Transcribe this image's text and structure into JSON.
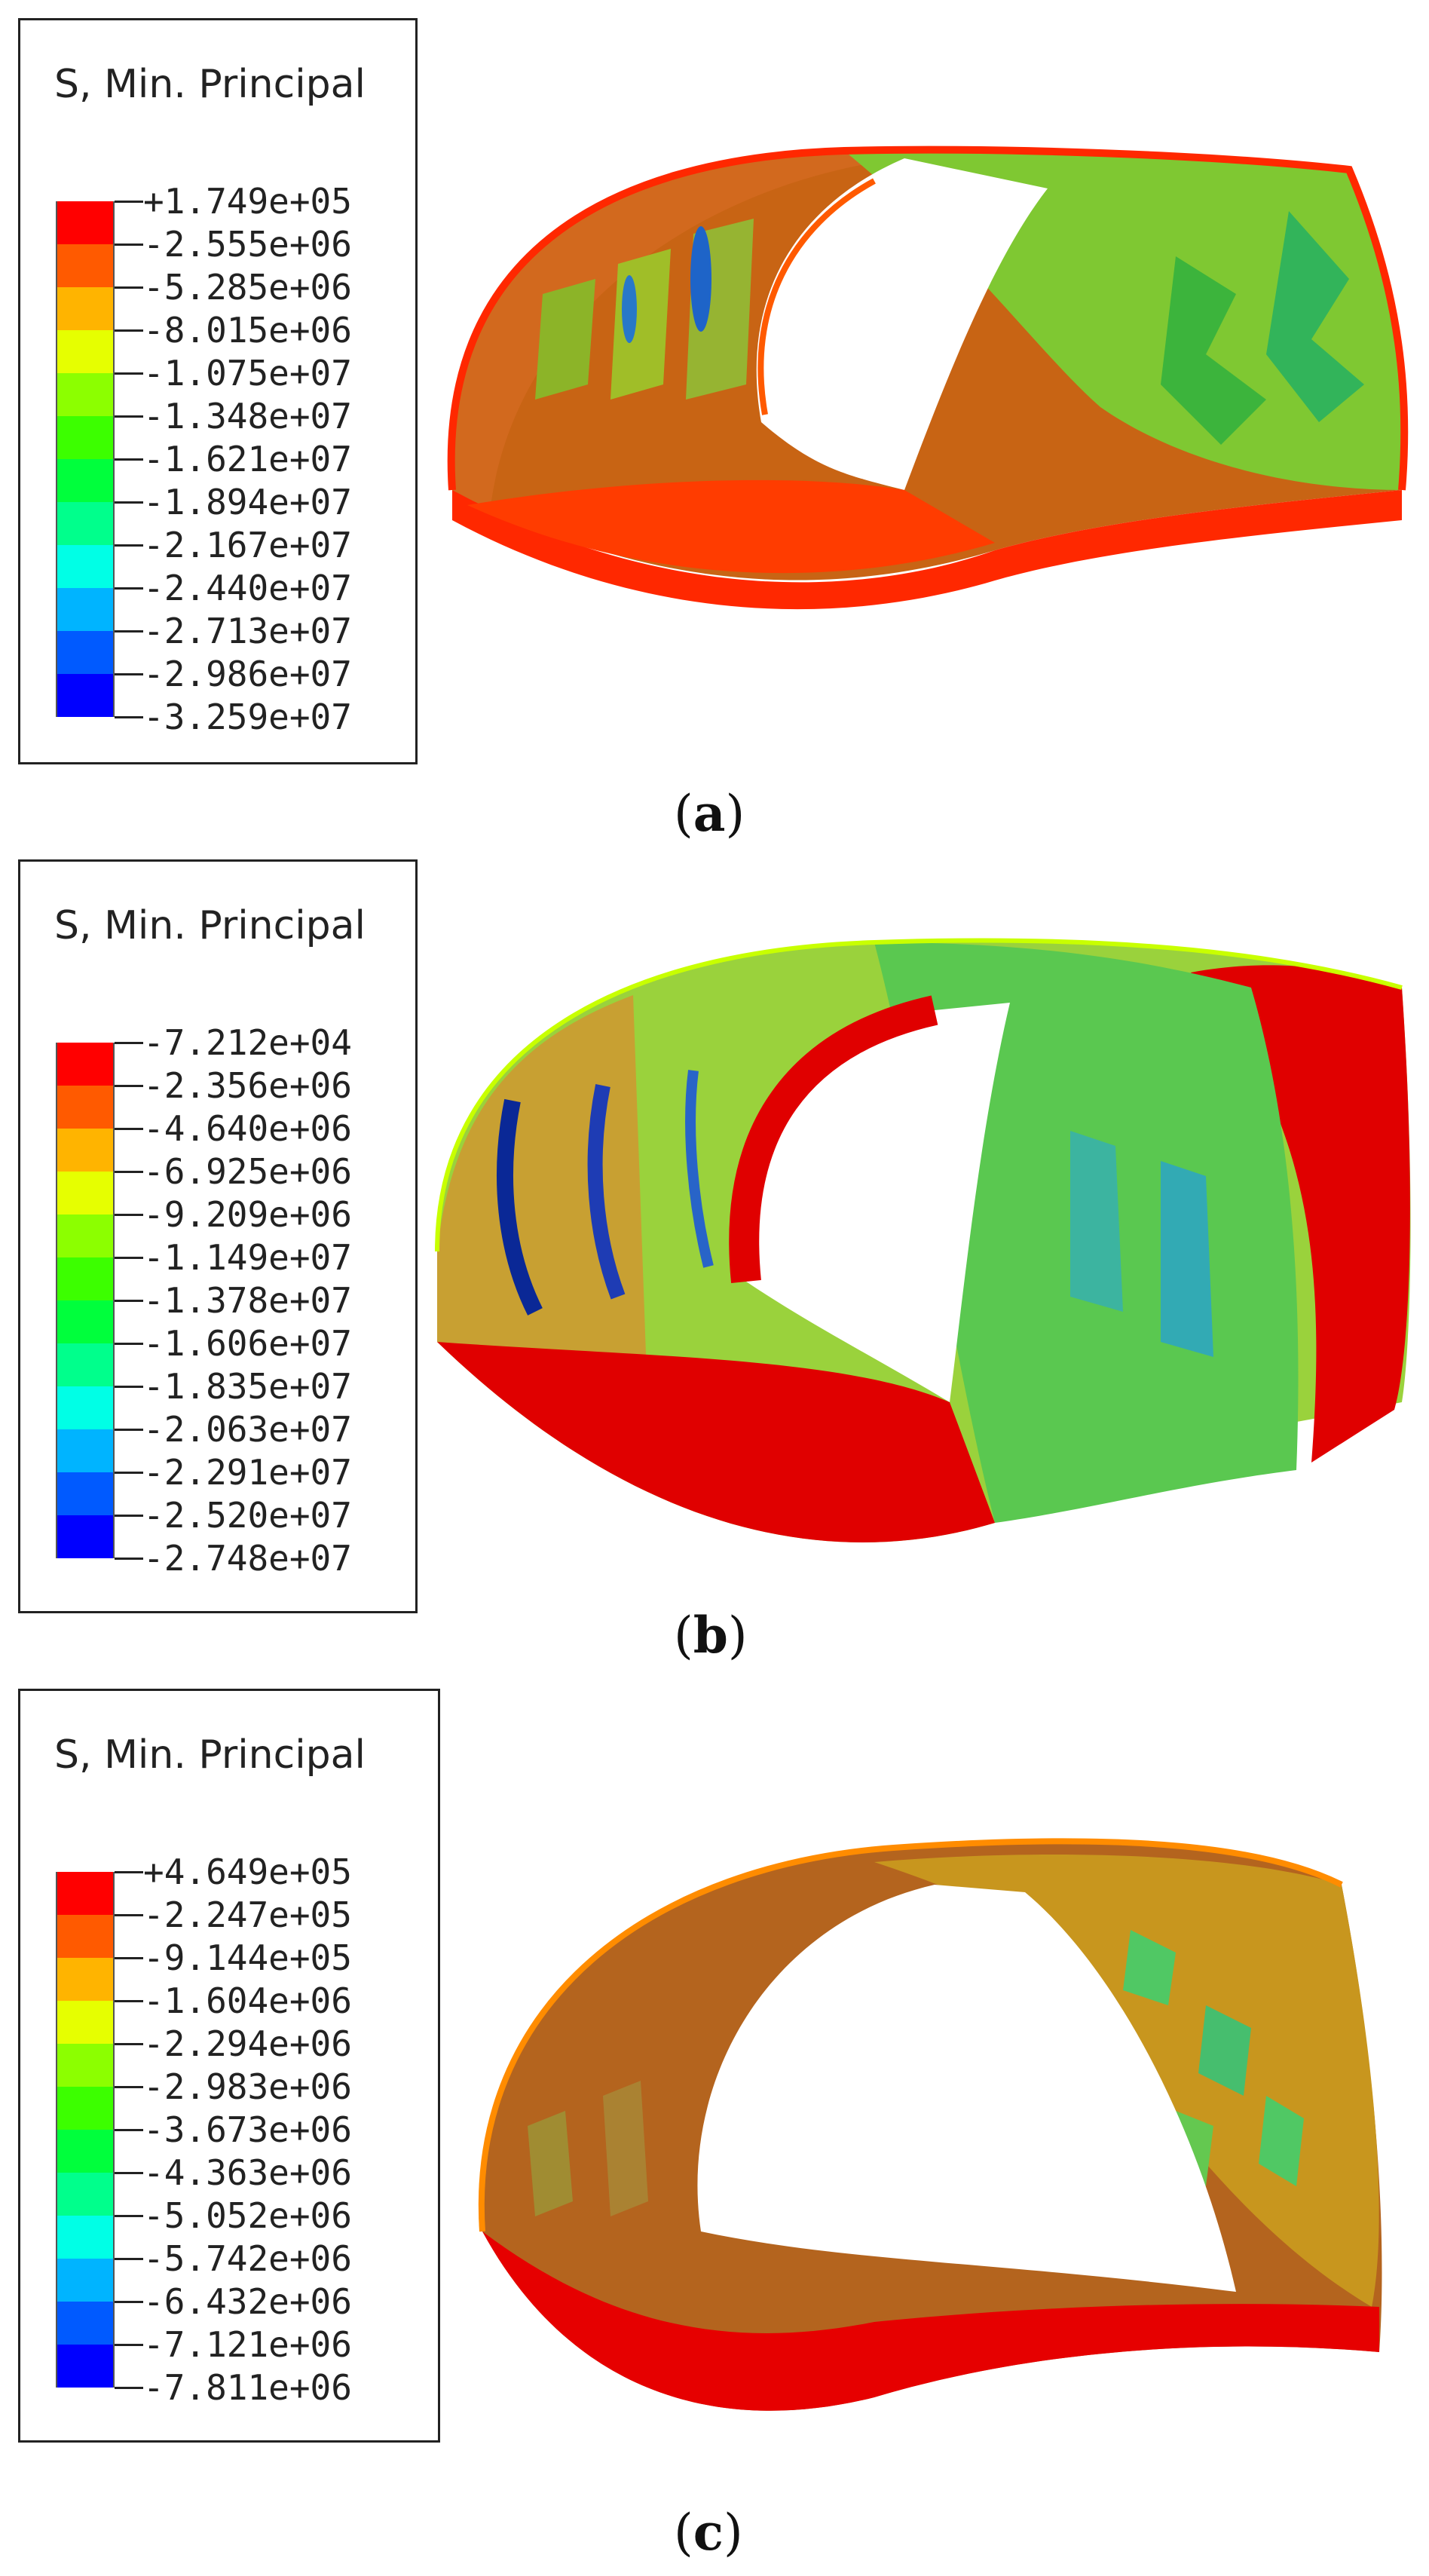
{
  "panels": [
    {
      "id": "a",
      "legend": {
        "title": "S, Min. Principal",
        "labels": [
          "+1.749e+05",
          "-2.555e+06",
          "-5.285e+06",
          "-8.015e+06",
          "-1.075e+07",
          "-1.348e+07",
          "-1.621e+07",
          "-1.894e+07",
          "-2.167e+07",
          "-2.440e+07",
          "-2.713e+07",
          "-2.986e+07",
          "-3.259e+07"
        ]
      },
      "caption_letter": "a"
    },
    {
      "id": "b",
      "legend": {
        "title": "S, Min. Principal",
        "labels": [
          "-7.212e+04",
          "-2.356e+06",
          "-4.640e+06",
          "-6.925e+06",
          "-9.209e+06",
          "-1.149e+07",
          "-1.378e+07",
          "-1.606e+07",
          "-1.835e+07",
          "-2.063e+07",
          "-2.291e+07",
          "-2.520e+07",
          "-2.748e+07"
        ]
      },
      "caption_letter": "b"
    },
    {
      "id": "c",
      "legend": {
        "title": "S, Min. Principal",
        "labels": [
          "+4.649e+05",
          "-2.247e+05",
          "-9.144e+05",
          "-1.604e+06",
          "-2.294e+06",
          "-2.983e+06",
          "-3.673e+06",
          "-4.363e+06",
          "-5.052e+06",
          "-5.742e+06",
          "-6.432e+06",
          "-7.121e+06",
          "-7.811e+06"
        ]
      },
      "caption_letter": "c"
    }
  ],
  "colorbar_colors": [
    "#ff0000",
    "#ff5a00",
    "#ffb400",
    "#e6ff00",
    "#8cff00",
    "#3cff00",
    "#00ff3c",
    "#00ff8c",
    "#00ffe6",
    "#00b4ff",
    "#005aff",
    "#0000ff"
  ],
  "caption_open": "(",
  "caption_close": ")"
}
